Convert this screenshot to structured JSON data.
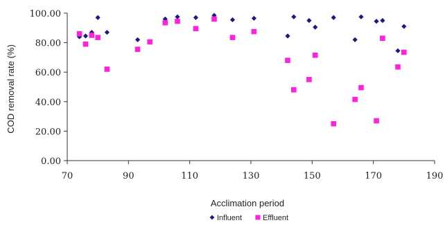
{
  "chart_data": {
    "type": "scatter",
    "title": "",
    "xlabel": "Acclimation period",
    "ylabel": "COD removal rate (%)",
    "xlim": [
      70,
      190
    ],
    "ylim": [
      0,
      100
    ],
    "xticks": [
      70,
      90,
      110,
      130,
      150,
      170,
      190
    ],
    "xtick_labels": [
      "70",
      "90",
      "110",
      "130",
      "150",
      "170",
      "190"
    ],
    "yticks": [
      0,
      20,
      40,
      60,
      80,
      100
    ],
    "ytick_labels": [
      "0.00",
      "20.00",
      "40.00",
      "60.00",
      "80.00",
      "100.00"
    ],
    "grid": false,
    "legend_position": "bottom",
    "series": [
      {
        "name": "Influent",
        "marker": "diamond",
        "color": "#1a1a80",
        "points": [
          {
            "x": 74,
            "y": 84
          },
          {
            "x": 76,
            "y": 84.5
          },
          {
            "x": 78,
            "y": 87
          },
          {
            "x": 80,
            "y": 97
          },
          {
            "x": 83,
            "y": 87
          },
          {
            "x": 93,
            "y": 82
          },
          {
            "x": 97,
            "y": 80.5
          },
          {
            "x": 102,
            "y": 96
          },
          {
            "x": 106,
            "y": 97.5
          },
          {
            "x": 112,
            "y": 97
          },
          {
            "x": 118,
            "y": 98.5
          },
          {
            "x": 124,
            "y": 95.5
          },
          {
            "x": 131,
            "y": 96.5
          },
          {
            "x": 142,
            "y": 84.5
          },
          {
            "x": 144,
            "y": 97.5
          },
          {
            "x": 149,
            "y": 95
          },
          {
            "x": 151,
            "y": 90.5
          },
          {
            "x": 157,
            "y": 97
          },
          {
            "x": 164,
            "y": 82
          },
          {
            "x": 166,
            "y": 97.5
          },
          {
            "x": 171,
            "y": 94.5
          },
          {
            "x": 173,
            "y": 95
          },
          {
            "x": 178,
            "y": 74.5
          },
          {
            "x": 180,
            "y": 91
          }
        ]
      },
      {
        "name": "Effluent",
        "marker": "square",
        "color": "#ff22dd",
        "points": [
          {
            "x": 74,
            "y": 86
          },
          {
            "x": 76,
            "y": 79
          },
          {
            "x": 78,
            "y": 85
          },
          {
            "x": 80,
            "y": 83.5
          },
          {
            "x": 83,
            "y": 62
          },
          {
            "x": 93,
            "y": 75.5
          },
          {
            "x": 97,
            "y": 80.5
          },
          {
            "x": 102,
            "y": 93.5
          },
          {
            "x": 106,
            "y": 94.5
          },
          {
            "x": 112,
            "y": 89.5
          },
          {
            "x": 118,
            "y": 96
          },
          {
            "x": 124,
            "y": 83.5
          },
          {
            "x": 131,
            "y": 87.5
          },
          {
            "x": 142,
            "y": 68
          },
          {
            "x": 144,
            "y": 48
          },
          {
            "x": 149,
            "y": 55
          },
          {
            "x": 151,
            "y": 71.5
          },
          {
            "x": 157,
            "y": 25
          },
          {
            "x": 164,
            "y": 41.5
          },
          {
            "x": 166,
            "y": 49.5
          },
          {
            "x": 171,
            "y": 27
          },
          {
            "x": 173,
            "y": 83
          },
          {
            "x": 178,
            "y": 63.5
          },
          {
            "x": 180,
            "y": 73.5
          }
        ]
      }
    ]
  }
}
